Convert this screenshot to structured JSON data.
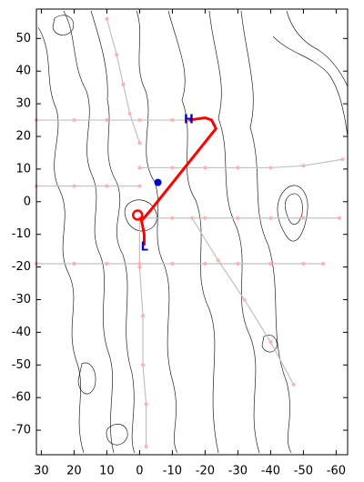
{
  "chart_data": {
    "type": "track-map",
    "xlim": [
      31.5,
      -63.5
    ],
    "ylim": [
      -77.5,
      59
    ],
    "xticks": [
      30,
      20,
      10,
      0,
      -10,
      -20,
      -30,
      -40,
      -50,
      -60
    ],
    "yticks": [
      50,
      40,
      30,
      20,
      10,
      0,
      -10,
      -20,
      -30,
      -40,
      -50,
      -60,
      -70
    ],
    "high": {
      "label": "H",
      "x": -15,
      "y": 25,
      "color": "#0000cc"
    },
    "low": {
      "label": "L",
      "x": -1.5,
      "y": -14,
      "color": "#0000cc"
    },
    "center": {
      "x": -5.6,
      "y": 5.9,
      "color": "#0000cc"
    },
    "vortex": {
      "x": 0.6,
      "y": -4.1,
      "color": "#ff0000"
    },
    "track": {
      "color": "#ff0000",
      "x": [
        -15,
        -20,
        -22,
        -23.3,
        -3.3,
        -0.6,
        -1.4,
        -1.4
      ],
      "y": [
        25,
        25.7,
        25,
        22.4,
        -2.7,
        -5.8,
        -10,
        -13.4
      ]
    },
    "leg_color": "#c0c0c0",
    "point_color": "#ffb0b0",
    "flight_legs": [
      {
        "x": [
          31.5,
          20,
          10,
          0,
          -10,
          -15
        ],
        "y": [
          25,
          25,
          25,
          25,
          25,
          25
        ]
      },
      {
        "x": [
          10,
          7,
          5,
          3,
          0
        ],
        "y": [
          56,
          45,
          36,
          27,
          18
        ]
      },
      {
        "x": [
          0,
          -10,
          -20,
          -30,
          -40,
          -50,
          -62
        ],
        "y": [
          10.4,
          10.4,
          10.4,
          10.4,
          10.4,
          11,
          13
        ]
      },
      {
        "x": [
          0,
          -10,
          -20,
          -30,
          -40,
          -50,
          -61
        ],
        "y": [
          -5,
          -5,
          -5,
          -5,
          -5,
          -5,
          -5
        ]
      },
      {
        "x": [
          0,
          0,
          -1,
          -1,
          -2,
          -2
        ],
        "y": [
          -5,
          -20,
          -35,
          -50,
          -62,
          -75
        ]
      },
      {
        "x": [
          31.5,
          20,
          10,
          0,
          -10,
          -20,
          -30,
          -40,
          -50,
          -56
        ],
        "y": [
          -19,
          -19,
          -19,
          -19,
          -19,
          -19,
          -19,
          -19,
          -19,
          -19
        ]
      },
      {
        "x": [
          -16,
          -24,
          -32,
          -40,
          -47
        ],
        "y": [
          -5,
          -18,
          -30,
          -43,
          -56
        ]
      },
      {
        "x": [
          31.5,
          20,
          10,
          0
        ],
        "y": [
          4.8,
          4.8,
          4.8,
          4.8
        ]
      }
    ]
  }
}
